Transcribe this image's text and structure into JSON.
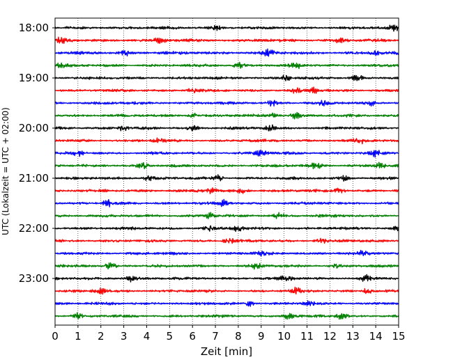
{
  "chart_data": {
    "type": "line",
    "title": "",
    "xlabel": "Zeit  [min]",
    "ylabel": "UTC (Lokalzeit = UTC + 02:00)",
    "xlim": [
      0,
      15
    ],
    "x_ticks": [
      "0",
      "1",
      "2",
      "3",
      "4",
      "5",
      "6",
      "7",
      "8",
      "9",
      "10",
      "11",
      "12",
      "13",
      "14",
      "15"
    ],
    "y_ticks": [
      "18:00",
      "19:00",
      "20:00",
      "21:00",
      "22:00",
      "23:00"
    ],
    "grid": "vertical-dotted",
    "trace_colors": [
      "#000000",
      "#ff0000",
      "#0000ff",
      "#007f00"
    ],
    "series": [
      {
        "start": "18:00",
        "amplitude": 0.5,
        "bursts": [
          7.0,
          14.8
        ]
      },
      {
        "start": "18:15",
        "amplitude": 0.55,
        "bursts": [
          0.3,
          4.6,
          12.5
        ]
      },
      {
        "start": "18:30",
        "amplitude": 0.55,
        "bursts": [
          3.0,
          9.3,
          14.0
        ]
      },
      {
        "start": "18:45",
        "amplitude": 0.5,
        "bursts": [
          0.3,
          8.0,
          10.5
        ]
      },
      {
        "start": "19:00",
        "amplitude": 0.5,
        "bursts": [
          10.1,
          13.2
        ]
      },
      {
        "start": "19:15",
        "amplitude": 0.5,
        "bursts": [
          6.0,
          10.5,
          11.3
        ]
      },
      {
        "start": "19:30",
        "amplitude": 0.5,
        "bursts": [
          9.5,
          11.7,
          13.8
        ]
      },
      {
        "start": "19:45",
        "amplitude": 0.5,
        "bursts": [
          6.1,
          9.5,
          10.5
        ]
      },
      {
        "start": "20:00",
        "amplitude": 0.5,
        "bursts": [
          3.0,
          6.0,
          9.4
        ]
      },
      {
        "start": "20:15",
        "amplitude": 0.5,
        "bursts": [
          4.5,
          13.3
        ]
      },
      {
        "start": "20:30",
        "amplitude": 0.5,
        "bursts": [
          1.0,
          9.0,
          14.0
        ]
      },
      {
        "start": "20:45",
        "amplitude": 0.5,
        "bursts": [
          3.8,
          11.4,
          14.2
        ]
      },
      {
        "start": "21:00",
        "amplitude": 0.5,
        "bursts": [
          4.1,
          7.1,
          12.6
        ]
      },
      {
        "start": "21:15",
        "amplitude": 0.5,
        "bursts": [
          6.8,
          8.2,
          12.4
        ]
      },
      {
        "start": "21:30",
        "amplitude": 0.5,
        "bursts": [
          2.3,
          7.4
        ]
      },
      {
        "start": "21:45",
        "amplitude": 0.5,
        "bursts": [
          6.8,
          9.8
        ]
      },
      {
        "start": "22:00",
        "amplitude": 0.5,
        "bursts": [
          6.7,
          8.0,
          15.0
        ]
      },
      {
        "start": "22:15",
        "amplitude": 0.5,
        "bursts": [
          7.6,
          11.6
        ]
      },
      {
        "start": "22:30",
        "amplitude": 0.5,
        "bursts": [
          9.0,
          13.4
        ]
      },
      {
        "start": "22:45",
        "amplitude": 0.5,
        "bursts": [
          2.4,
          8.8,
          12.3
        ]
      },
      {
        "start": "23:00",
        "amplitude": 0.5,
        "bursts": [
          3.3,
          10.1,
          13.6
        ]
      },
      {
        "start": "23:15",
        "amplitude": 0.5,
        "bursts": [
          2.0,
          10.5,
          13.6
        ]
      },
      {
        "start": "23:30",
        "amplitude": 0.5,
        "bursts": [
          8.5,
          11.1
        ]
      },
      {
        "start": "23:45",
        "amplitude": 0.5,
        "bursts": [
          1.0,
          10.2,
          12.5
        ]
      }
    ]
  }
}
